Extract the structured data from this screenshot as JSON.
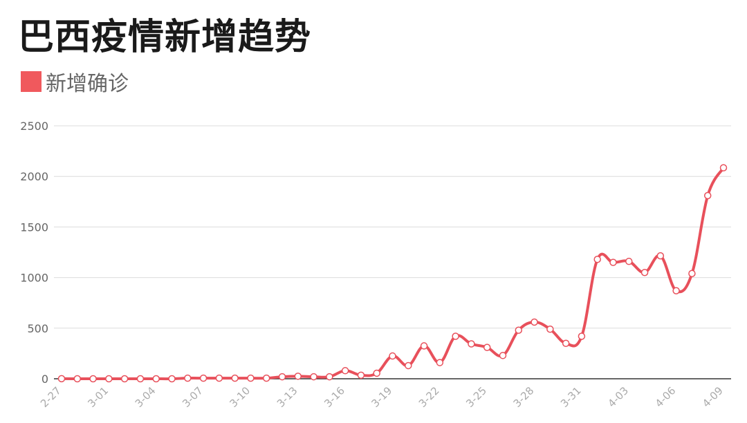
{
  "title": "巴西疫情新增趋势",
  "legend": {
    "label": "新增确诊",
    "color": "#f0595d"
  },
  "chart_data": {
    "type": "line",
    "title": "巴西疫情新增趋势",
    "xlabel": "",
    "ylabel": "",
    "ylim": [
      0,
      2500
    ],
    "yticks": [
      0,
      500,
      1000,
      1500,
      2000,
      2500
    ],
    "grid": true,
    "legend_position": "top-left",
    "line_color": "#e8505b",
    "x": [
      "2-27",
      "2-28",
      "2-29",
      "3-01",
      "3-02",
      "3-03",
      "3-04",
      "3-05",
      "3-06",
      "3-07",
      "3-08",
      "3-09",
      "3-10",
      "3-11",
      "3-12",
      "3-13",
      "3-14",
      "3-15",
      "3-16",
      "3-17",
      "3-18",
      "3-19",
      "3-20",
      "3-21",
      "3-22",
      "3-23",
      "3-24",
      "3-25",
      "3-26",
      "3-27",
      "3-28",
      "3-29",
      "3-30",
      "3-31",
      "4-01",
      "4-02",
      "4-03",
      "4-04",
      "4-05",
      "4-06",
      "4-07",
      "4-08",
      "4-09"
    ],
    "x_tick_labels": [
      "2-27",
      "3-01",
      "3-04",
      "3-07",
      "3-10",
      "3-13",
      "3-16",
      "3-19",
      "3-22",
      "3-25",
      "3-28",
      "3-31",
      "4-03",
      "4-06",
      "4-09"
    ],
    "series": [
      {
        "name": "新增确诊",
        "values": [
          1,
          0,
          0,
          0,
          0,
          0,
          0,
          0,
          6,
          6,
          6,
          6,
          6,
          6,
          20,
          25,
          20,
          20,
          80,
          35,
          55,
          225,
          130,
          325,
          160,
          420,
          345,
          310,
          230,
          480,
          560,
          490,
          350,
          420,
          1180,
          1150,
          1160,
          1050,
          1215,
          870,
          1040,
          1810,
          2085
        ]
      }
    ]
  }
}
